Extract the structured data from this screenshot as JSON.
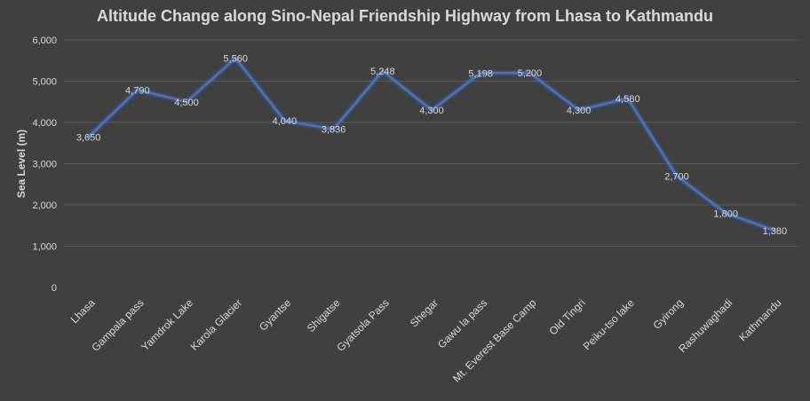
{
  "chart_data": {
    "type": "line",
    "title": "Altitude Change along Sino-Nepal Friendship Highway from Lhasa to Kathmandu",
    "xlabel": "",
    "ylabel": "Sea Level (m)",
    "ylim": [
      0,
      6000
    ],
    "yticks": [
      0,
      1000,
      2000,
      3000,
      4000,
      5000,
      6000
    ],
    "ytick_labels": [
      "0",
      "1,000",
      "2,000",
      "3,000",
      "4,000",
      "5,000",
      "6,000"
    ],
    "grid": true,
    "legend": "none",
    "categories": [
      "Lhasa",
      "Gampala pass",
      "Yamdrok Lake",
      "Karola Glacier",
      "Gyantse",
      "Shigatse",
      "Gyatsola Pass",
      "Shegar",
      "Gawu la pass",
      "Mt. Everest Base Camp",
      "Old Tingri",
      "Peiku-tso lake",
      "Gyirong",
      "Rashuwaghadi",
      "Kathmandu"
    ],
    "values": [
      3650,
      4790,
      4500,
      5560,
      4040,
      3836,
      5248,
      4300,
      5198,
      5200,
      4300,
      4580,
      2700,
      1800,
      1380
    ],
    "data_labels": [
      "3,650",
      "4,790",
      "4,500",
      "5,560",
      "4,040",
      "3,836",
      "5,248",
      "4,300",
      "5,198",
      "5,200",
      "4,300",
      "4,580",
      "2,700",
      "1,800",
      "1,380"
    ],
    "colors": {
      "background": "#404040",
      "line": "#4472c4",
      "text": "#d9d9d9",
      "grid": "#5a5a5a"
    }
  }
}
